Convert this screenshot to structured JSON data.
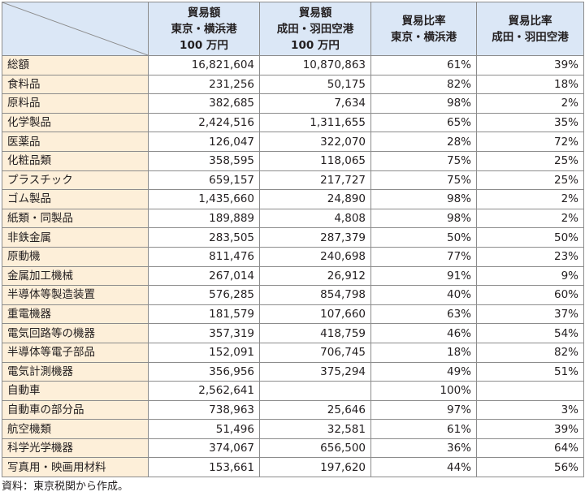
{
  "table": {
    "headers": [
      "",
      "貿易額\n東京・横浜港\n100 万円",
      "貿易額\n成田・羽田空港\n100 万円",
      "貿易比率\n東京・横浜港",
      "貿易比率\n成田・羽田空港"
    ],
    "rows": [
      [
        "総額",
        "16,821,604",
        "10,870,863",
        "61%",
        "39%"
      ],
      [
        "食料品",
        "231,256",
        "50,175",
        "82%",
        "18%"
      ],
      [
        "原料品",
        "382,685",
        "7,634",
        "98%",
        "2%"
      ],
      [
        "化学製品",
        "2,424,516",
        "1,311,655",
        "65%",
        "35%"
      ],
      [
        "医薬品",
        "126,047",
        "322,070",
        "28%",
        "72%"
      ],
      [
        "化粧品類",
        "358,595",
        "118,065",
        "75%",
        "25%"
      ],
      [
        "プラスチック",
        "659,157",
        "217,727",
        "75%",
        "25%"
      ],
      [
        "ゴム製品",
        "1,435,660",
        "24,890",
        "98%",
        "2%"
      ],
      [
        "紙類・同製品",
        "189,889",
        "4,808",
        "98%",
        "2%"
      ],
      [
        "非鉄金属",
        "283,505",
        "287,379",
        "50%",
        "50%"
      ],
      [
        "原動機",
        "811,476",
        "240,698",
        "77%",
        "23%"
      ],
      [
        "金属加工機械",
        "267,014",
        "26,912",
        "91%",
        "9%"
      ],
      [
        "半導体等製造装置",
        "576,285",
        "854,798",
        "40%",
        "60%"
      ],
      [
        "重電機器",
        "181,579",
        "107,660",
        "63%",
        "37%"
      ],
      [
        "電気回路等の機器",
        "357,319",
        "418,759",
        "46%",
        "54%"
      ],
      [
        "半導体等電子部品",
        "152,091",
        "706,745",
        "18%",
        "82%"
      ],
      [
        "電気計測機器",
        "356,956",
        "375,294",
        "49%",
        "51%"
      ],
      [
        "自動車",
        "2,562,641",
        "",
        "100%",
        ""
      ],
      [
        "自動車の部分品",
        "738,963",
        "25,646",
        "97%",
        "3%"
      ],
      [
        "航空機類",
        "51,496",
        "32,581",
        "61%",
        "39%"
      ],
      [
        "科学光学機器",
        "374,067",
        "656,500",
        "36%",
        "64%"
      ],
      [
        "写真用・映画用材料",
        "153,661",
        "197,620",
        "44%",
        "56%"
      ]
    ]
  },
  "chart_data": {
    "type": "table",
    "columns": [
      "貿易額 東京・横浜港 100 万円",
      "貿易額 成田・羽田空港 100 万円",
      "貿易比率 東京・横浜港",
      "貿易比率 成田・羽田空港"
    ],
    "categories": [
      "総額",
      "食料品",
      "原料品",
      "化学製品",
      "医薬品",
      "化粧品類",
      "プラスチック",
      "ゴム製品",
      "紙類・同製品",
      "非鉄金属",
      "原動機",
      "金属加工機械",
      "半導体等製造装置",
      "重電機器",
      "電気回路等の機器",
      "半導体等電子部品",
      "電気計測機器",
      "自動車",
      "自動車の部分品",
      "航空機類",
      "科学光学機器",
      "写真用・映画用材料"
    ],
    "series": [
      {
        "name": "貿易額 東京・横浜港 100 万円",
        "values": [
          16821604,
          231256,
          382685,
          2424516,
          126047,
          358595,
          659157,
          1435660,
          189889,
          283505,
          811476,
          267014,
          576285,
          181579,
          357319,
          152091,
          356956,
          2562641,
          738963,
          51496,
          374067,
          153661
        ]
      },
      {
        "name": "貿易額 成田・羽田空港 100 万円",
        "values": [
          10870863,
          50175,
          7634,
          1311655,
          322070,
          118065,
          217727,
          24890,
          4808,
          287379,
          240698,
          26912,
          854798,
          107660,
          418759,
          706745,
          375294,
          null,
          25646,
          32581,
          656500,
          197620
        ]
      },
      {
        "name": "貿易比率 東京・横浜港",
        "values": [
          61,
          82,
          98,
          65,
          28,
          75,
          75,
          98,
          98,
          50,
          77,
          91,
          40,
          63,
          46,
          18,
          49,
          100,
          97,
          61,
          36,
          44
        ]
      },
      {
        "name": "貿易比率 成田・羽田空港",
        "values": [
          39,
          18,
          2,
          35,
          72,
          25,
          25,
          2,
          2,
          50,
          23,
          9,
          60,
          37,
          54,
          82,
          51,
          null,
          3,
          39,
          64,
          56
        ]
      }
    ]
  },
  "source_note": "資料：東京税関から作成。",
  "colors": {
    "header_bg": "#dbe7f6",
    "label_bg": "#fdefd9",
    "border": "#8c8c8c"
  }
}
